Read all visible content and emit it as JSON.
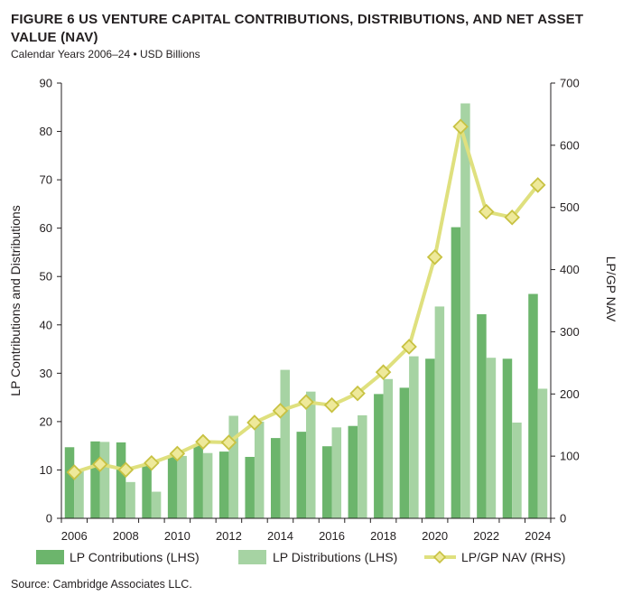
{
  "figure": {
    "title": "FIGURE 6   US VENTURE CAPITAL CONTRIBUTIONS, DISTRIBUTIONS, AND NET ASSET VALUE (NAV)",
    "subtitle": "Calendar Years 2006–24 • USD Billions",
    "source": "Source: Cambridge Associates LLC."
  },
  "colors": {
    "contributions": "#6cb56c",
    "distributions": "#a6d3a3",
    "nav_line": "#dfe07e",
    "nav_marker_fill": "#eee99a",
    "nav_marker_stroke": "#c8c242",
    "axis": "#231f20"
  },
  "chart_data": {
    "type": "bar",
    "years": [
      "2006",
      "2007",
      "2008",
      "2009",
      "2010",
      "2011",
      "2012",
      "2013",
      "2014",
      "2015",
      "2016",
      "2017",
      "2018",
      "2019",
      "2020",
      "2021",
      "2022",
      "2023",
      "2024"
    ],
    "x_tick_labels": [
      "2006",
      "2008",
      "2010",
      "2012",
      "2014",
      "2016",
      "2018",
      "2020",
      "2022",
      "2024"
    ],
    "series": [
      {
        "name": "LP Contributions (LHS)",
        "axis": "left",
        "kind": "bar",
        "values": [
          14.7,
          15.9,
          15.7,
          10.9,
          12.8,
          15.1,
          13.8,
          12.7,
          16.6,
          17.9,
          14.9,
          19.1,
          25.7,
          27.0,
          33.0,
          60.2,
          42.2,
          33.0,
          46.4
        ]
      },
      {
        "name": "LP Distributions (LHS)",
        "axis": "left",
        "kind": "bar",
        "values": [
          10.0,
          15.8,
          7.5,
          5.5,
          12.9,
          13.5,
          21.2,
          20.0,
          30.7,
          26.2,
          18.8,
          21.3,
          28.8,
          33.5,
          43.8,
          85.8,
          33.2,
          19.8,
          26.8
        ]
      },
      {
        "name": "LP/GP NAV (RHS)",
        "axis": "right",
        "kind": "line",
        "values": [
          74,
          87,
          78,
          89,
          104,
          123,
          122,
          154,
          173,
          187,
          182,
          201,
          235,
          276,
          420,
          630,
          493,
          484,
          536
        ]
      }
    ],
    "left_axis": {
      "label": "LP Contributions and Distributions",
      "min": 0,
      "max": 90,
      "ticks": [
        0,
        10,
        20,
        30,
        40,
        50,
        60,
        70,
        80,
        90
      ]
    },
    "right_axis": {
      "label": "LP/GP NAV",
      "min": 0,
      "max": 700,
      "ticks": [
        0,
        100,
        200,
        300,
        400,
        500,
        600,
        700
      ]
    },
    "grid": false,
    "legend_position": "bottom"
  }
}
